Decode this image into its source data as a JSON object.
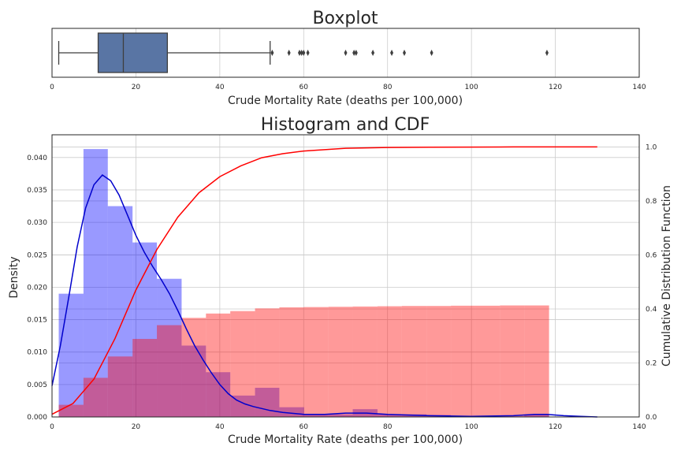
{
  "chart_data": [
    {
      "type": "box",
      "title": "Boxplot",
      "xlabel": "Crude Mortality Rate (deaths per 100,000)",
      "xlim": [
        0,
        140
      ],
      "xticks": [
        0,
        20,
        40,
        60,
        80,
        100,
        120,
        140
      ],
      "grid": true,
      "box_color": "#5975a4",
      "stats": {
        "whisker_low": 1.6,
        "q1": 11.0,
        "median": 17.0,
        "q3": 27.5,
        "whisker_high": 52.0
      },
      "outliers": [
        52.5,
        56.5,
        59.0,
        59.5,
        60.0,
        61.0,
        70.0,
        72.0,
        72.5,
        76.5,
        81.0,
        84.0,
        90.5,
        118.0
      ]
    },
    {
      "type": "histogram",
      "title": "Histogram and CDF",
      "xlabel": "Crude Mortality Rate (deaths per 100,000)",
      "ylabel": "Density",
      "y2label": "Cumulative Distribution Function",
      "xlim": [
        0,
        140
      ],
      "ylim": [
        0,
        0.0435
      ],
      "y2lim": [
        0,
        1.045
      ],
      "xticks": [
        0,
        20,
        40,
        60,
        80,
        100,
        120,
        140
      ],
      "yticks": [
        "0.000",
        "0.005",
        "0.010",
        "0.015",
        "0.020",
        "0.025",
        "0.030",
        "0.035",
        "0.040"
      ],
      "y2ticks": [
        "0.0",
        "0.2",
        "0.4",
        "0.6",
        "0.8",
        "1.0"
      ],
      "grid": true,
      "colors": {
        "density_bars": "#0000ff",
        "density_kde": "#0000cc",
        "cdf_bars": "#ff0000",
        "cdf_line": "#ff0000"
      },
      "density_hist": {
        "bins": [
          [
            1.6,
            7.5
          ],
          [
            7.5,
            13.3
          ],
          [
            13.3,
            19.2
          ],
          [
            19.2,
            25.0
          ],
          [
            25.0,
            30.9
          ],
          [
            30.9,
            36.7
          ],
          [
            36.7,
            42.5
          ],
          [
            42.5,
            48.4
          ],
          [
            48.4,
            54.2
          ],
          [
            54.2,
            60.1
          ],
          [
            60.1,
            65.9
          ],
          [
            65.9,
            71.7
          ],
          [
            71.7,
            77.6
          ],
          [
            77.6,
            83.4
          ],
          [
            83.4,
            89.3
          ],
          [
            89.3,
            95.1
          ],
          [
            95.1,
            100.9
          ],
          [
            100.9,
            106.8
          ],
          [
            106.8,
            112.6
          ],
          [
            112.6,
            118.5
          ]
        ],
        "values": [
          0.019,
          0.0413,
          0.0325,
          0.0269,
          0.0213,
          0.011,
          0.0069,
          0.0033,
          0.0045,
          0.0015,
          0.0004,
          0.0004,
          0.0012,
          0.0004,
          0.0004,
          0.0003,
          0.0001,
          0.0001,
          0.0001,
          0.0004
        ]
      },
      "cdf_hist": {
        "values": [
          0.045,
          0.145,
          0.224,
          0.289,
          0.34,
          0.367,
          0.383,
          0.392,
          0.402,
          0.406,
          0.407,
          0.408,
          0.409,
          0.41,
          0.411,
          0.411,
          0.412,
          0.412,
          0.413,
          0.413
        ]
      },
      "kde": {
        "x": [
          0,
          2,
          4,
          6,
          8,
          10,
          12,
          14,
          16,
          18,
          20,
          22,
          24,
          26,
          28,
          30,
          32,
          34,
          36,
          38,
          40,
          42,
          44,
          46,
          48,
          50,
          52,
          55,
          60,
          65,
          70,
          75,
          80,
          90,
          100,
          110,
          115,
          118,
          122,
          126,
          130
        ],
        "y": [
          0.0048,
          0.011,
          0.0185,
          0.0262,
          0.0322,
          0.0358,
          0.0373,
          0.0364,
          0.0342,
          0.0311,
          0.028,
          0.0254,
          0.0232,
          0.0212,
          0.019,
          0.0164,
          0.0136,
          0.011,
          0.0088,
          0.0068,
          0.005,
          0.0036,
          0.0026,
          0.002,
          0.0016,
          0.0013,
          0.001,
          0.0007,
          0.0004,
          0.0004,
          0.0006,
          0.0006,
          0.0004,
          0.0002,
          0.0001,
          0.0002,
          0.0004,
          0.0004,
          0.0002,
          0.0001,
          0.0
        ]
      },
      "cdf": {
        "x": [
          0,
          5,
          10,
          15,
          20,
          25,
          30,
          35,
          40,
          45,
          50,
          55,
          60,
          70,
          80,
          90,
          100,
          110,
          120,
          130
        ],
        "y": [
          0.01,
          0.05,
          0.14,
          0.29,
          0.47,
          0.62,
          0.74,
          0.83,
          0.89,
          0.93,
          0.96,
          0.975,
          0.985,
          0.995,
          0.998,
          0.999,
          0.9995,
          1.0,
          1.0,
          1.0
        ]
      }
    }
  ]
}
